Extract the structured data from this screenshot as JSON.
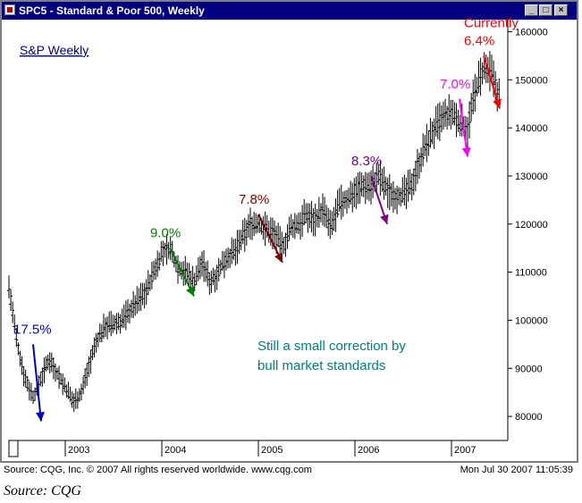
{
  "window": {
    "title": "SPC5 - Standard & Poor 500, Weekly",
    "buttons": {
      "minimize": "_",
      "maximize": "□",
      "close": "×"
    }
  },
  "chart_data": {
    "type": "bar",
    "subtype": "OHLC weekly price bars",
    "legend_label": "S&P Weekly",
    "x_axis": {
      "ticks": [
        "2003",
        "2004",
        "2005",
        "2006",
        "2007"
      ],
      "range": [
        "2002-06",
        "2007-08"
      ]
    },
    "y_axis": {
      "ticks": [
        80000,
        90000,
        100000,
        110000,
        120000,
        130000,
        140000,
        150000,
        160000
      ],
      "range": [
        75000,
        162500
      ],
      "side": "right",
      "tick_format": "raw integer (index ×100)"
    },
    "grid": false,
    "series": [
      {
        "x": [
          "2002-06",
          "2002-07",
          "2002-08",
          "2002-09",
          "2002-10",
          "2002-11",
          "2002-12",
          "2003-01",
          "2003-02",
          "2003-03",
          "2003-04",
          "2003-05",
          "2003-06",
          "2003-07",
          "2003-08",
          "2003-09",
          "2003-10",
          "2003-11",
          "2003-12",
          "2004-01",
          "2004-02",
          "2004-03",
          "2004-04",
          "2004-05",
          "2004-06",
          "2004-07",
          "2004-08",
          "2004-09",
          "2004-10",
          "2004-11",
          "2004-12",
          "2005-01",
          "2005-02",
          "2005-03",
          "2005-04",
          "2005-05",
          "2005-06",
          "2005-07",
          "2005-08",
          "2005-09",
          "2005-10",
          "2005-11",
          "2005-12",
          "2006-01",
          "2006-02",
          "2006-03",
          "2006-04",
          "2006-05",
          "2006-06",
          "2006-07",
          "2006-08",
          "2006-09",
          "2006-10",
          "2006-11",
          "2006-12",
          "2007-01",
          "2007-02",
          "2007-03",
          "2007-04",
          "2007-05",
          "2007-06",
          "2007-07"
        ],
        "y": [
          107000,
          95000,
          88000,
          84000,
          88000,
          92000,
          89000,
          86000,
          83000,
          85000,
          91000,
          96000,
          99000,
          99000,
          100000,
          102000,
          104000,
          106000,
          110000,
          114000,
          115000,
          111000,
          110000,
          108000,
          112000,
          108000,
          110000,
          113000,
          114000,
          117000,
          120000,
          120000,
          119000,
          118000,
          115000,
          119000,
          120000,
          122000,
          121000,
          123000,
          119000,
          124000,
          125000,
          127000,
          128000,
          128000,
          130000,
          127000,
          126000,
          126000,
          128000,
          133000,
          137000,
          140000,
          142000,
          143000,
          141000,
          140000,
          148000,
          152000,
          151000,
          146000
        ]
      }
    ],
    "annotations": [
      {
        "label": "17.5%",
        "color": "#0000cc",
        "from": [
          "2002-09",
          95000
        ],
        "to": [
          "2002-10",
          79000
        ]
      },
      {
        "label": "9.0%",
        "color": "#008000",
        "from": [
          "2004-02",
          115000
        ],
        "to": [
          "2004-05",
          105000
        ]
      },
      {
        "label": "7.8%",
        "color": "#800000",
        "from": [
          "2005-01",
          122000
        ],
        "to": [
          "2005-04",
          112000
        ]
      },
      {
        "label": "8.3%",
        "color": "#800080",
        "from": [
          "2006-03",
          130000
        ],
        "to": [
          "2006-05",
          120000
        ]
      },
      {
        "label": "7.0%",
        "color": "#ff00ff",
        "from": [
          "2007-02",
          146000
        ],
        "to": [
          "2007-03",
          134000
        ]
      },
      {
        "label": "Currently",
        "label2": "6.4%",
        "color": "#ff0000",
        "from": [
          "2007-05",
          155000
        ],
        "to": [
          "2007-07",
          144000
        ]
      }
    ],
    "note": [
      "Still a small correction by",
      "bull market standards"
    ],
    "note_color": "#008080"
  },
  "footer": {
    "left": "Source: CQG, Inc. © 2007 All rights reserved worldwide. www.cqg.com",
    "right": "Mon Jul 30 2007 11:05:39"
  },
  "source_caption": "Source: CQG"
}
